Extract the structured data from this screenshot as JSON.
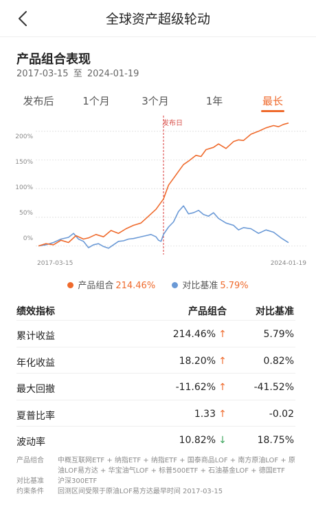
{
  "header": {
    "title": "全球资产超级轮动",
    "back_icon": "chevron-left-icon"
  },
  "summary": {
    "title": "产品组合表现",
    "date_start": "2017-03-15",
    "date_sep": "至",
    "date_end": "2024-01-19"
  },
  "tabs": [
    {
      "label": "发布后",
      "active": false
    },
    {
      "label": "1个月",
      "active": false
    },
    {
      "label": "3个月",
      "active": false
    },
    {
      "label": "1年",
      "active": false
    },
    {
      "label": "最长",
      "active": true
    }
  ],
  "colors": {
    "portfolio": "#ef6a2c",
    "benchmark": "#6a99d6",
    "release": "#d93a3a",
    "grid": "#dddddd",
    "accent": "#ef6a2c"
  },
  "chart_data": {
    "type": "line",
    "x_start_label": "2017-03-15",
    "x_end_label": "2024-01-19",
    "yticks": [
      "200%",
      "150%",
      "100%",
      "50%",
      "0%"
    ],
    "ylim": [
      -15,
      225
    ],
    "release_label": "发布日",
    "release_at": 0.5,
    "grid": true,
    "legend_position": "bottom",
    "series": [
      {
        "name": "产品组合",
        "value_label": "214.46%",
        "points": [
          [
            0,
            0
          ],
          [
            0.03,
            4
          ],
          [
            0.06,
            2
          ],
          [
            0.09,
            10
          ],
          [
            0.12,
            6
          ],
          [
            0.15,
            18
          ],
          [
            0.18,
            12
          ],
          [
            0.2,
            14
          ],
          [
            0.23,
            20
          ],
          [
            0.26,
            16
          ],
          [
            0.29,
            27
          ],
          [
            0.32,
            22
          ],
          [
            0.35,
            30
          ],
          [
            0.38,
            36
          ],
          [
            0.41,
            40
          ],
          [
            0.44,
            52
          ],
          [
            0.47,
            64
          ],
          [
            0.5,
            82
          ],
          [
            0.52,
            106
          ],
          [
            0.54,
            118
          ],
          [
            0.56,
            130
          ],
          [
            0.58,
            142
          ],
          [
            0.6,
            148
          ],
          [
            0.63,
            158
          ],
          [
            0.65,
            156
          ],
          [
            0.67,
            168
          ],
          [
            0.7,
            172
          ],
          [
            0.72,
            178
          ],
          [
            0.75,
            170
          ],
          [
            0.78,
            182
          ],
          [
            0.8,
            185
          ],
          [
            0.82,
            184
          ],
          [
            0.85,
            195
          ],
          [
            0.88,
            200
          ],
          [
            0.91,
            206
          ],
          [
            0.94,
            210
          ],
          [
            0.96,
            208
          ],
          [
            0.98,
            212
          ],
          [
            1,
            214.46
          ]
        ]
      },
      {
        "name": "对比基准",
        "value_label": "5.79%",
        "points": [
          [
            0,
            0
          ],
          [
            0.03,
            2
          ],
          [
            0.06,
            6
          ],
          [
            0.09,
            12
          ],
          [
            0.12,
            15
          ],
          [
            0.14,
            22
          ],
          [
            0.16,
            12
          ],
          [
            0.18,
            8
          ],
          [
            0.2,
            -3
          ],
          [
            0.22,
            2
          ],
          [
            0.24,
            4
          ],
          [
            0.26,
            -1
          ],
          [
            0.28,
            -4
          ],
          [
            0.3,
            2
          ],
          [
            0.32,
            8
          ],
          [
            0.34,
            9
          ],
          [
            0.36,
            12
          ],
          [
            0.38,
            13
          ],
          [
            0.4,
            15
          ],
          [
            0.43,
            18
          ],
          [
            0.45,
            20
          ],
          [
            0.47,
            16
          ],
          [
            0.48,
            10
          ],
          [
            0.49,
            8
          ],
          [
            0.5,
            20
          ],
          [
            0.52,
            33
          ],
          [
            0.54,
            42
          ],
          [
            0.56,
            60
          ],
          [
            0.58,
            70
          ],
          [
            0.6,
            56
          ],
          [
            0.62,
            58
          ],
          [
            0.64,
            62
          ],
          [
            0.66,
            55
          ],
          [
            0.68,
            52
          ],
          [
            0.7,
            58
          ],
          [
            0.72,
            48
          ],
          [
            0.75,
            40
          ],
          [
            0.78,
            36
          ],
          [
            0.8,
            28
          ],
          [
            0.82,
            32
          ],
          [
            0.85,
            30
          ],
          [
            0.88,
            22
          ],
          [
            0.91,
            28
          ],
          [
            0.94,
            24
          ],
          [
            0.97,
            14
          ],
          [
            1,
            5.79
          ]
        ]
      }
    ]
  },
  "metrics": {
    "headers": [
      "绩效指标",
      "产品组合",
      "对比基准"
    ],
    "rows": [
      {
        "label": "累计收益",
        "portfolio": "214.46%",
        "arrow": "↑",
        "arrow_dir": "up",
        "benchmark": "5.79%"
      },
      {
        "label": "年化收益",
        "portfolio": "18.20%",
        "arrow": "↑",
        "arrow_dir": "up",
        "benchmark": "0.82%"
      },
      {
        "label": "最大回撤",
        "portfolio": "-11.62%",
        "arrow": "↑",
        "arrow_dir": "up",
        "benchmark": "-41.52%"
      },
      {
        "label": "夏普比率",
        "portfolio": "1.33",
        "arrow": "↑",
        "arrow_dir": "up",
        "benchmark": "-0.02"
      },
      {
        "label": "波动率",
        "portfolio": "10.82%",
        "arrow": "↓",
        "arrow_dir": "down",
        "benchmark": "18.75%"
      }
    ]
  },
  "footnotes": [
    {
      "label": "产品组合",
      "text": "中概互联网ETF + 纳指ETF + 纳指ETF + 国泰商品LOF + 南方原油LOF + 原油LOF易方达 + 华宝油气LOF + 标普500ETF + 石油基金LOF + 德国ETF"
    },
    {
      "label": "对比基准",
      "text": "沪深300ETF"
    },
    {
      "label": "约束条件",
      "text": "回测区间受限于原油LOF易方达最早时间 2017-03-15"
    }
  ]
}
